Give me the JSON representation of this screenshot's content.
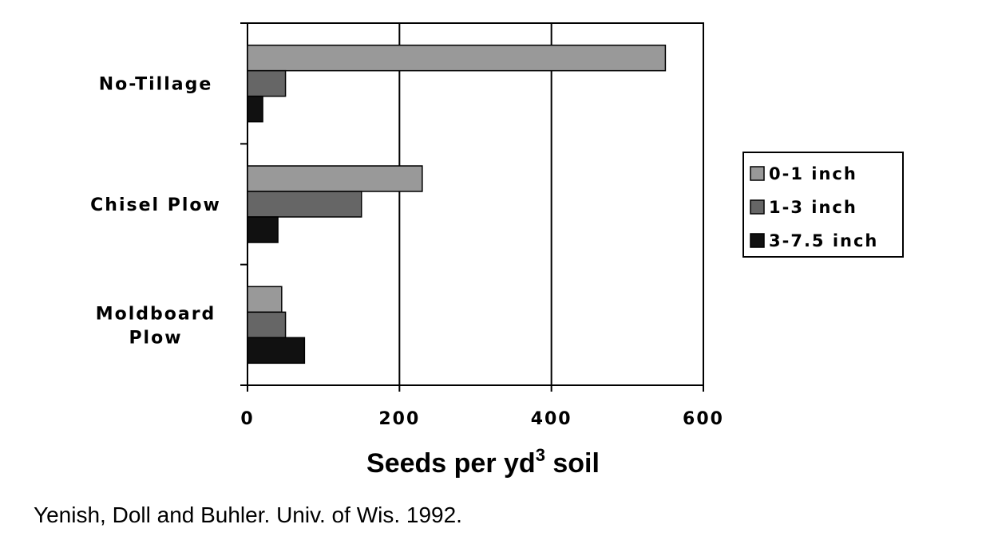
{
  "chart_data": {
    "type": "bar",
    "orientation": "horizontal",
    "categories": [
      {
        "lines": [
          "No-Tillage"
        ]
      },
      {
        "lines": [
          "Chisel Plow"
        ]
      },
      {
        "lines": [
          "Moldboard",
          "Plow"
        ]
      }
    ],
    "series": [
      {
        "name": "0-1 inch",
        "color": "#999999",
        "values": [
          550,
          230,
          45
        ]
      },
      {
        "name": "1-3 inch",
        "color": "#666666",
        "values": [
          50,
          150,
          50
        ]
      },
      {
        "name": "3-7.5 inch",
        "color": "#111111",
        "values": [
          20,
          40,
          75
        ]
      }
    ],
    "xlim": [
      0,
      600
    ],
    "x_ticks": [
      "0",
      "200",
      "400",
      "600"
    ],
    "x_tick_values": [
      0,
      200,
      400,
      600
    ],
    "xlabel": {
      "main": "Seeds per yd",
      "sup": "3",
      "tail": " soil"
    },
    "ylabel": "",
    "grid": "vertical",
    "legend_position": "right"
  },
  "source": "Yenish, Doll and Buhler. Univ. of Wis.  1992."
}
